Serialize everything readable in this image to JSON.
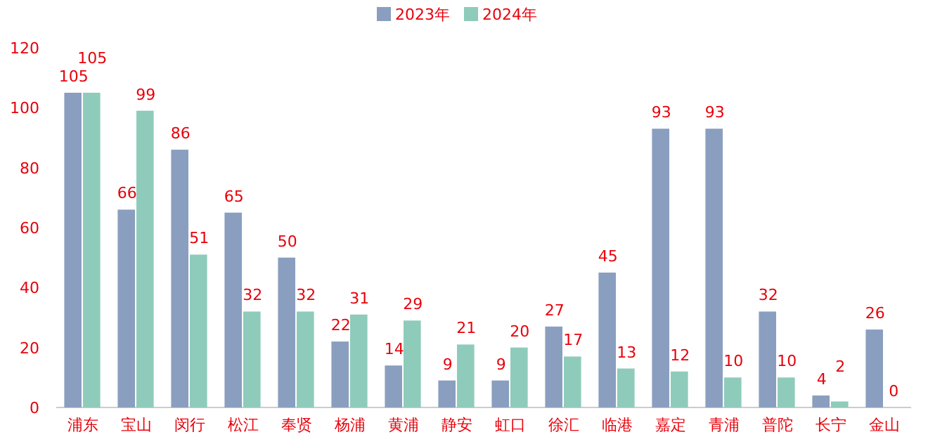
{
  "chart_data": {
    "type": "bar",
    "categories": [
      "浦东",
      "宝山",
      "闵行",
      "松江",
      "奉贤",
      "杨浦",
      "黄浦",
      "静安",
      "虹口",
      "徐汇",
      "临港",
      "嘉定",
      "青浦",
      "普陀",
      "长宁",
      "金山"
    ],
    "series": [
      {
        "name": "2023年",
        "color": "#8a9fbf",
        "values": [
          105,
          66,
          86,
          65,
          50,
          22,
          14,
          9,
          9,
          27,
          45,
          93,
          93,
          32,
          4,
          26
        ]
      },
      {
        "name": "2024年",
        "color": "#8ecbbb",
        "values": [
          105,
          99,
          51,
          32,
          32,
          31,
          29,
          21,
          20,
          17,
          13,
          12,
          10,
          10,
          2,
          0
        ]
      }
    ],
    "ylim": [
      0,
      120
    ],
    "yticks": [
      0,
      20,
      40,
      60,
      80,
      100,
      120
    ],
    "data_labels": true,
    "legend": "top",
    "grid": false
  }
}
